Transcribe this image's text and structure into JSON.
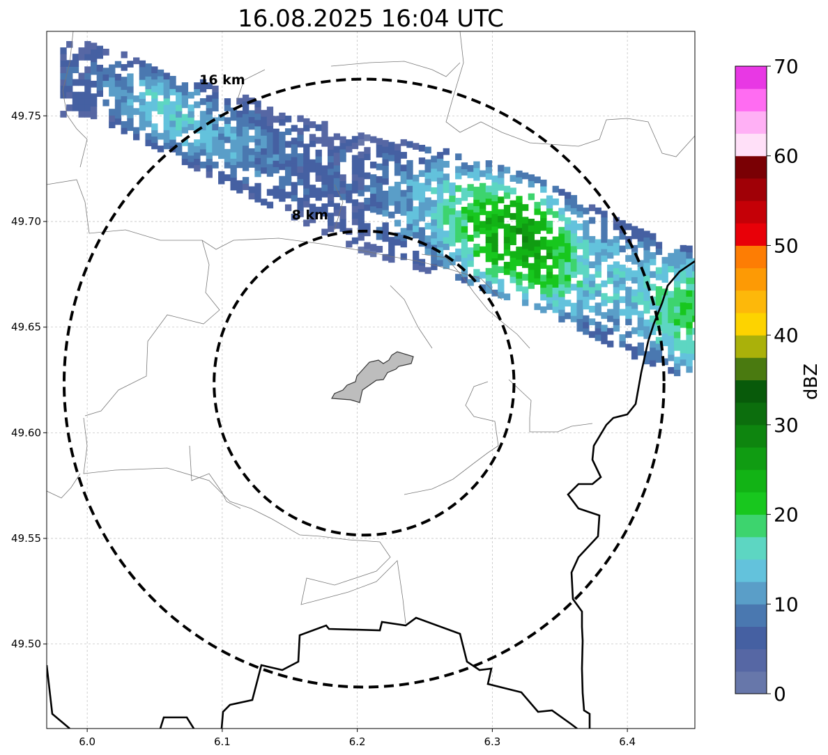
{
  "title": "16.08.2025 16:04 UTC",
  "map": {
    "lon_range": [
      5.97,
      6.45
    ],
    "lat_range": [
      49.46,
      49.79
    ],
    "x_ticks": [
      {
        "value": 6.0,
        "label": "6.0"
      },
      {
        "value": 6.1,
        "label": "6.1"
      },
      {
        "value": 6.2,
        "label": "6.2"
      },
      {
        "value": 6.3,
        "label": "6.3"
      },
      {
        "value": 6.4,
        "label": "6.4"
      }
    ],
    "y_ticks": [
      {
        "value": 49.5,
        "label": "49.50"
      },
      {
        "value": 49.55,
        "label": "49.55"
      },
      {
        "value": 49.6,
        "label": "49.60"
      },
      {
        "value": 49.65,
        "label": "49.65"
      },
      {
        "value": 49.7,
        "label": "49.70"
      },
      {
        "value": 49.75,
        "label": "49.75"
      }
    ],
    "grid": true,
    "center": {
      "lon": 6.205,
      "lat": 49.6235
    },
    "range_rings": [
      {
        "label": "8 km",
        "radius_km": 8,
        "label_at": {
          "lon": 6.165,
          "lat": 49.701
        }
      },
      {
        "label": "16 km",
        "radius_km": 16,
        "label_at": {
          "lon": 6.1,
          "lat": 49.765
        }
      }
    ],
    "features": {
      "city": "gray-filled-polygon",
      "municipal_borders": "thin-gray-lines",
      "national_borders": "thick-black-lines"
    }
  },
  "colorbar": {
    "label": "dBZ",
    "min": 0,
    "max": 70,
    "tick_values": [
      0,
      10,
      20,
      30,
      40,
      50,
      60,
      70
    ],
    "tick_labels": [
      "0",
      "10",
      "20",
      "30",
      "40",
      "50",
      "60",
      "70"
    ],
    "colors": [
      "#6777aa",
      "#5667a4",
      "#4560a2",
      "#4a78b0",
      "#5a9ec8",
      "#63c2dc",
      "#5dd6c2",
      "#3dd46e",
      "#18c71e",
      "#12b315",
      "#109c12",
      "#0e850f",
      "#0c6e0d",
      "#085a0a",
      "#4a7a10",
      "#aab10a",
      "#fdd300",
      "#fdb80a",
      "#fd9a05",
      "#fd7d04",
      "#e80008",
      "#c50007",
      "#a00006",
      "#7a0004",
      "#ffe0f8",
      "#ffb0f5",
      "#ff6cf2",
      "#e838e4"
    ]
  },
  "chart_data": {
    "type": "heatmap",
    "title": "16.08.2025 16:04 UTC",
    "colorbar_label": "dBZ",
    "x_range": [
      5.97,
      6.45
    ],
    "y_range": [
      49.46,
      49.79
    ],
    "value_range": [
      0,
      70
    ],
    "echo_band": [
      {
        "lon": 6.0,
        "lat": 49.765,
        "dbz": 6
      },
      {
        "lon": 6.05,
        "lat": 49.752,
        "dbz": 15
      },
      {
        "lon": 6.1,
        "lat": 49.738,
        "dbz": 11
      },
      {
        "lon": 6.15,
        "lat": 49.725,
        "dbz": 7
      },
      {
        "lon": 6.2,
        "lat": 49.712,
        "dbz": 6
      },
      {
        "lon": 6.25,
        "lat": 49.705,
        "dbz": 13
      },
      {
        "lon": 6.3,
        "lat": 49.694,
        "dbz": 24
      },
      {
        "lon": 6.33,
        "lat": 49.688,
        "dbz": 26
      },
      {
        "lon": 6.37,
        "lat": 49.675,
        "dbz": 14
      },
      {
        "lon": 6.4,
        "lat": 49.665,
        "dbz": 13
      },
      {
        "lon": 6.44,
        "lat": 49.655,
        "dbz": 19
      }
    ]
  }
}
